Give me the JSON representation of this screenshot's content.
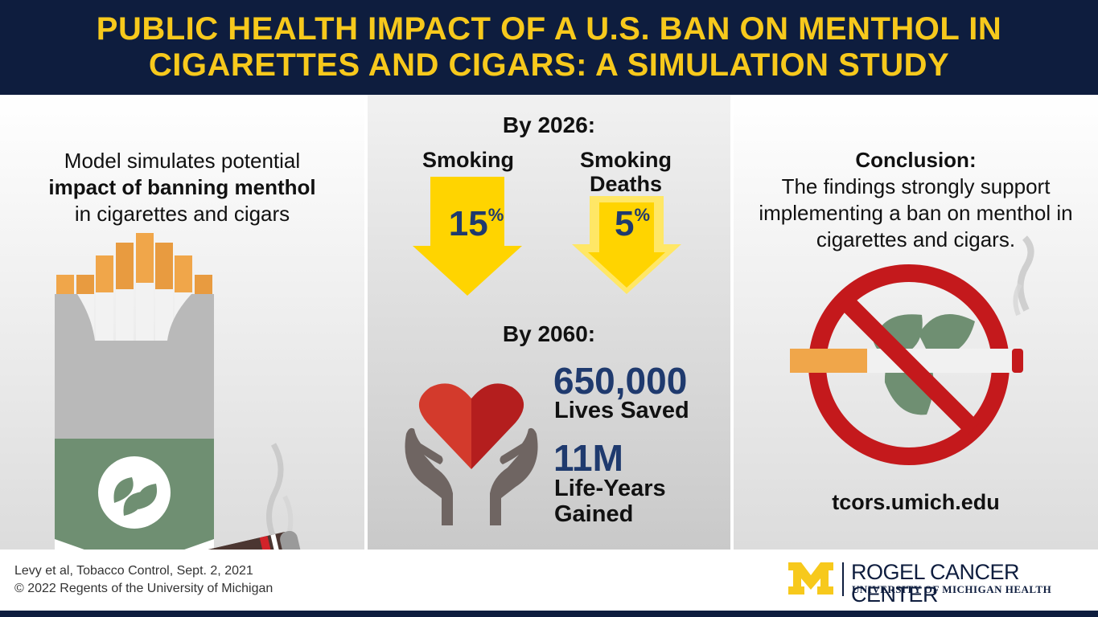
{
  "header": {
    "title": "PUBLIC HEALTH IMPACT OF A U.S. BAN ON MENTHOL IN CIGARETTES AND CIGARS: A SIMULATION STUDY"
  },
  "left": {
    "intro_line1": "Model simulates potential",
    "intro_bold": "impact of banning menthol",
    "intro_line3": "in cigarettes and cigars"
  },
  "middle": {
    "by2026": "By 2026:",
    "smoking_label": "Smoking",
    "deaths_label": "Smoking Deaths",
    "smoking_pct": "15",
    "deaths_pct": "5",
    "pct_sign": "%",
    "by2060": "By 2060:",
    "lives_value": "650,000",
    "lives_label": "Lives Saved",
    "years_value": "11M",
    "years_label_1": "Life-Years",
    "years_label_2": "Gained"
  },
  "right": {
    "conclusion_title": "Conclusion:",
    "conclusion_body": "The findings strongly support implementing a ban on menthol in cigarettes and cigars.",
    "url": "tcors.umich.edu"
  },
  "footer": {
    "citation": "Levy et al, Tobacco Control, Sept. 2, 2021",
    "copyright": "© 2022 Regents of the University of Michigan",
    "logo_letter": "M",
    "logo_name": "ROGEL CANCER CENTER",
    "logo_sub": "UNIVERSITY OF MICHIGAN HEALTH"
  },
  "colors": {
    "navy": "#0e1d3e",
    "gold": "#f7c91c",
    "stat_blue": "#1f3a6e",
    "arrow_yellow": "#ffd400",
    "pack_green": "#6f8f72",
    "ban_red": "#c4191c",
    "heart_red": "#c8201e"
  },
  "icons": [
    "cigarette-pack-icon",
    "cigar-icon",
    "down-arrow-icon",
    "heart-hands-icon",
    "no-menthol-icon",
    "michigan-m-logo"
  ]
}
